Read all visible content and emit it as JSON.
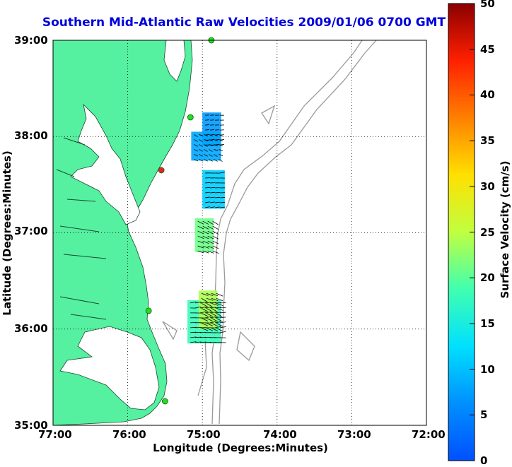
{
  "title": "Southern Mid-Atlantic Raw Velocities 2009/01/06 0700 GMT",
  "x_axis": {
    "label": "Longitude (Degrees:Minutes)",
    "ticks": [
      "77:00",
      "76:00",
      "75:00",
      "74:00",
      "73:00",
      "72:00"
    ]
  },
  "y_axis": {
    "label": "Latitude (Degrees:Minutes)",
    "ticks": [
      "39:00",
      "38:00",
      "37:00",
      "36:00",
      "35:00"
    ]
  },
  "colorbar": {
    "label": "Surface Velocity (cm/s)",
    "ticks": [
      "50",
      "45",
      "40",
      "35",
      "30",
      "25",
      "20",
      "15",
      "10",
      "5",
      "0"
    ],
    "range": [
      0,
      50
    ],
    "colormap": "jet"
  },
  "colors": {
    "land": "#55f0a0",
    "title": "#0000dd",
    "bathymetry": "#9a9a9a"
  },
  "grid": "dotted",
  "chart_data": {
    "type": "map",
    "lon_range": [
      -77,
      -72
    ],
    "lat_range": [
      35,
      39
    ],
    "stations": [
      {
        "lon": -74.88,
        "lat": 39.0,
        "status": "active"
      },
      {
        "lon": -75.16,
        "lat": 38.2,
        "status": "active"
      },
      {
        "lon": -75.55,
        "lat": 37.65,
        "status": "inactive"
      },
      {
        "lon": -75.72,
        "lat": 36.19,
        "status": "active"
      },
      {
        "lon": -75.5,
        "lat": 35.25,
        "status": "active"
      }
    ],
    "velocity_patches": [
      {
        "lon": [
          -75.0,
          -74.75
        ],
        "lat": [
          37.9,
          38.25
        ],
        "speed": 7
      },
      {
        "lon": [
          -75.15,
          -74.75
        ],
        "lat": [
          37.75,
          38.05
        ],
        "speed": 8
      },
      {
        "lon": [
          -75.0,
          -74.7
        ],
        "lat": [
          37.25,
          37.65
        ],
        "speed": 11
      },
      {
        "lon": [
          -75.1,
          -74.85
        ],
        "lat": [
          36.8,
          37.15
        ],
        "speed": 21
      },
      {
        "lon": [
          -75.2,
          -74.75
        ],
        "lat": [
          35.85,
          36.3
        ],
        "speed": 18
      },
      {
        "lon": [
          -75.05,
          -74.8
        ],
        "lat": [
          36.0,
          36.4
        ],
        "speed": 24
      }
    ]
  }
}
